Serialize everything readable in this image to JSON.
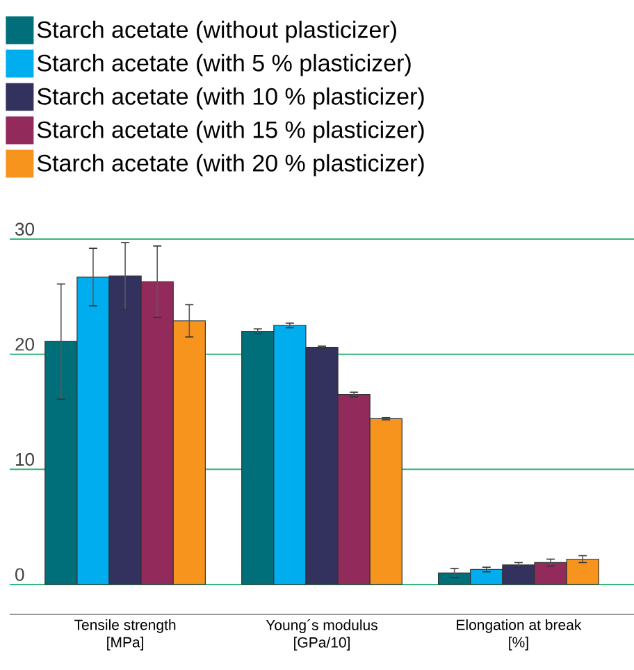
{
  "chart_data": {
    "type": "bar",
    "categories": [
      "Tensile strength [MPa]",
      "Young´s modulus [GPa/10]",
      "Elongation at break [%]"
    ],
    "series": [
      {
        "name": "Starch acetate (without plasticizer)",
        "color": "#006f7a",
        "values": [
          21.1,
          22.0,
          1.0
        ],
        "errors": [
          5.0,
          0.2,
          0.4
        ]
      },
      {
        "name": "Starch acetate (with 5 % plasticizer)",
        "color": "#00aeef",
        "values": [
          26.7,
          22.5,
          1.3
        ],
        "errors": [
          2.5,
          0.2,
          0.2
        ]
      },
      {
        "name": "Starch acetate (with 10 % plasticizer)",
        "color": "#33325f",
        "values": [
          26.8,
          20.6,
          1.7
        ],
        "errors": [
          2.9,
          0.1,
          0.2
        ]
      },
      {
        "name": "Starch acetate (with 15 % plasticizer)",
        "color": "#922b5c",
        "values": [
          26.3,
          16.5,
          1.9
        ],
        "errors": [
          3.1,
          0.2,
          0.3
        ]
      },
      {
        "name": "Starch acetate (with 20 % plasticizer)",
        "color": "#f7941d",
        "values": [
          22.9,
          14.4,
          2.2
        ],
        "errors": [
          1.4,
          0.1,
          0.3
        ]
      }
    ],
    "ylim": [
      -2.6,
      30
    ],
    "yticks": [
      0,
      10,
      20,
      30
    ],
    "grid": "y",
    "legend": "top left"
  }
}
